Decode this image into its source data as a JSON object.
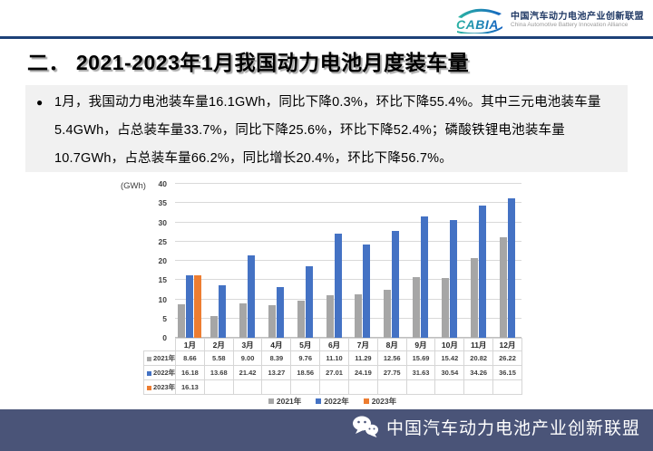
{
  "header": {
    "logo_text": "CABIA",
    "org_cn": "中国汽车动力电池产业创新联盟",
    "org_en": "China Automotive Battery Innovation Alliance"
  },
  "title": "二． 2021-2023年1月我国动力电池月度装车量",
  "summary": {
    "bullet": "●",
    "text": "1月，我国动力电池装车量16.1GWh，同比下降0.3%，环比下降55.4%。其中三元电池装车量5.4GWh，占总装车量33.7%，同比下降25.6%，环比下降52.4%；磷酸铁锂电池装车量10.7GWh，占总装车量66.2%，同比增长20.4%，环比下降56.7%。"
  },
  "chart_data": {
    "type": "bar",
    "title": "",
    "unit_label": "(GWh)",
    "categories": [
      "1月",
      "2月",
      "3月",
      "4月",
      "5月",
      "6月",
      "7月",
      "8月",
      "9月",
      "10月",
      "11月",
      "12月"
    ],
    "series": [
      {
        "name": "2021年",
        "color": "#a6a6a6",
        "values": [
          8.66,
          5.58,
          9.0,
          8.39,
          9.76,
          11.1,
          11.29,
          12.56,
          15.69,
          15.42,
          20.82,
          26.22
        ]
      },
      {
        "name": "2022年",
        "color": "#4472c4",
        "values": [
          16.18,
          13.68,
          21.42,
          13.27,
          18.56,
          27.01,
          24.19,
          27.75,
          31.63,
          30.54,
          34.26,
          36.15
        ]
      },
      {
        "name": "2023年",
        "color": "#ed7d31",
        "values": [
          16.13
        ]
      }
    ],
    "ylim": [
      0,
      40
    ],
    "ytick_step": 5,
    "grid": true,
    "legend_position": "bottom",
    "data_table": true
  },
  "colors": {
    "divider_navy": "#1d4178",
    "footer_bg": "#4a5478",
    "summary_bg": "#f1f1f1",
    "logo_teal": "#2bb3a3",
    "logo_blue": "#1565c0"
  },
  "footer": {
    "org_cn": "中国汽车动力电池产业创新联盟"
  }
}
